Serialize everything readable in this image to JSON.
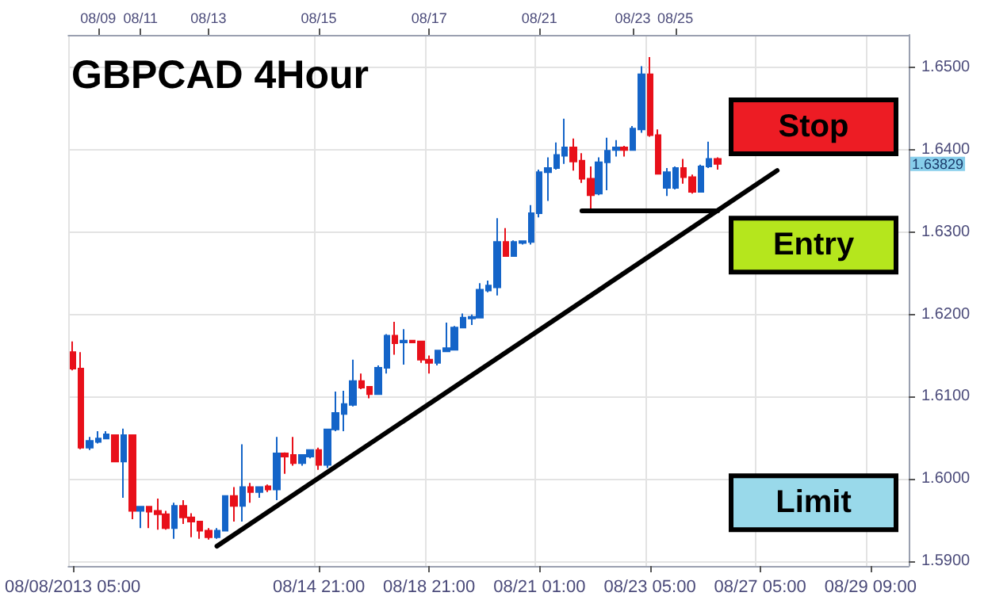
{
  "chart_data": {
    "type": "candlestick",
    "title": "GBPCAD 4Hour",
    "categories": [
      "08/08/2013 05:00",
      null,
      null,
      null,
      null,
      null,
      null,
      null,
      null,
      null,
      null,
      null,
      null,
      null,
      null,
      null,
      null,
      null,
      null,
      null,
      null,
      null,
      null,
      null,
      null,
      null,
      null,
      null,
      null,
      "08/14 21:00",
      null,
      null,
      null,
      null,
      null,
      null,
      null,
      null,
      null,
      null,
      null,
      null,
      "08/18 21:00",
      null,
      null,
      null,
      null,
      null,
      null,
      null,
      null,
      null,
      null,
      null,
      null,
      "08/21 01:00",
      null,
      null,
      null,
      null,
      null,
      null,
      null,
      null,
      null,
      null,
      null,
      null,
      "08/23 05:00",
      null,
      null,
      null,
      null,
      null,
      null,
      null,
      null,
      null,
      null,
      null,
      null,
      "08/27 05:00",
      null,
      null,
      null,
      null,
      null,
      null,
      null,
      null,
      null,
      null,
      null,
      null,
      "08/29 09:00",
      null,
      null,
      null,
      null
    ],
    "ohlc": [
      [
        1.6154,
        1.6167,
        1.6132,
        1.6134
      ],
      [
        1.6134,
        1.6154,
        1.6036,
        1.6038
      ],
      [
        1.6038,
        1.6051,
        1.6035,
        1.6046
      ],
      [
        1.6045,
        1.6058,
        1.6043,
        1.6049
      ],
      [
        1.6049,
        1.6058,
        1.6048,
        1.6054
      ],
      [
        1.6053,
        1.6054,
        1.6021,
        1.6021
      ],
      [
        1.6021,
        1.6061,
        1.5977,
        1.6053
      ],
      [
        1.6053,
        1.6053,
        1.5951,
        1.5961
      ],
      [
        1.5961,
        1.5967,
        1.594,
        1.5966
      ],
      [
        1.5966,
        1.5966,
        1.594,
        1.596
      ],
      [
        1.5961,
        1.5976,
        1.5938,
        1.5957
      ],
      [
        1.5957,
        1.5961,
        1.5938,
        1.594
      ],
      [
        1.594,
        1.5971,
        1.5927,
        1.5967
      ],
      [
        1.5967,
        1.5974,
        1.5945,
        1.5953
      ],
      [
        1.5953,
        1.5958,
        1.5929,
        1.5948
      ],
      [
        1.5948,
        1.5948,
        1.5927,
        1.5937
      ],
      [
        1.5937,
        1.594,
        1.5926,
        1.5929
      ],
      [
        1.5929,
        1.594,
        1.5927,
        1.5937
      ],
      [
        1.5937,
        1.598,
        1.5937,
        1.5979
      ],
      [
        1.5979,
        1.599,
        1.5948,
        1.5967
      ],
      [
        1.5967,
        1.6042,
        1.5948,
        1.599
      ],
      [
        1.599,
        1.5995,
        1.5971,
        1.5984
      ],
      [
        1.5984,
        1.5991,
        1.5977,
        1.599
      ],
      [
        1.5991,
        1.5993,
        1.5984,
        1.5987
      ],
      [
        1.5987,
        1.6051,
        1.5974,
        1.6031
      ],
      [
        1.6031,
        1.6032,
        1.6006,
        1.6027
      ],
      [
        1.6029,
        1.6051,
        1.6016,
        1.6019
      ],
      [
        1.6019,
        1.603,
        1.6016,
        1.6029
      ],
      [
        1.6027,
        1.6036,
        1.6025,
        1.6035
      ],
      [
        1.6035,
        1.6038,
        1.6011,
        1.6017
      ],
      [
        1.6017,
        1.606,
        1.6013,
        1.606
      ],
      [
        1.606,
        1.6106,
        1.6058,
        1.608
      ],
      [
        1.6079,
        1.6107,
        1.6058,
        1.6091
      ],
      [
        1.609,
        1.6145,
        1.6088,
        1.6119
      ],
      [
        1.6119,
        1.6128,
        1.6109,
        1.6111
      ],
      [
        1.6112,
        1.6112,
        1.6098,
        1.6103
      ],
      [
        1.6103,
        1.6138,
        1.6103,
        1.6135
      ],
      [
        1.6135,
        1.6176,
        1.6128,
        1.6174
      ],
      [
        1.6174,
        1.6191,
        1.6151,
        1.6165
      ],
      [
        1.6166,
        1.6182,
        1.6139,
        1.6168
      ],
      [
        1.6168,
        1.6168,
        1.6166,
        1.6166
      ],
      [
        1.6167,
        1.6167,
        1.6141,
        1.6145
      ],
      [
        1.6145,
        1.615,
        1.6128,
        1.6141
      ],
      [
        1.6141,
        1.6157,
        1.6138,
        1.6156
      ],
      [
        1.6155,
        1.619,
        1.6154,
        1.6159
      ],
      [
        1.6157,
        1.6186,
        1.6156,
        1.6184
      ],
      [
        1.6184,
        1.6201,
        1.6183,
        1.6196
      ],
      [
        1.6195,
        1.62,
        1.6187,
        1.6197
      ],
      [
        1.6196,
        1.6238,
        1.6195,
        1.623
      ],
      [
        1.6229,
        1.6241,
        1.6227,
        1.6235
      ],
      [
        1.6233,
        1.6317,
        1.6223,
        1.6288
      ],
      [
        1.6288,
        1.6305,
        1.627,
        1.6271
      ],
      [
        1.6271,
        1.629,
        1.627,
        1.6288
      ],
      [
        1.6287,
        1.629,
        1.6285,
        1.6289
      ],
      [
        1.6288,
        1.6333,
        1.6285,
        1.6323
      ],
      [
        1.6323,
        1.6376,
        1.6318,
        1.6373
      ],
      [
        1.6373,
        1.6391,
        1.6338,
        1.6378
      ],
      [
        1.6378,
        1.6409,
        1.6376,
        1.6394
      ],
      [
        1.6393,
        1.6438,
        1.6383,
        1.6403
      ],
      [
        1.6403,
        1.6414,
        1.6375,
        1.6386
      ],
      [
        1.6387,
        1.6396,
        1.636,
        1.6365
      ],
      [
        1.6365,
        1.638,
        1.6328,
        1.6345
      ],
      [
        1.6347,
        1.6391,
        1.6345,
        1.6385
      ],
      [
        1.6385,
        1.6415,
        1.6351,
        1.6399
      ],
      [
        1.64,
        1.6412,
        1.6392,
        1.6403
      ],
      [
        1.6403,
        1.6405,
        1.6392,
        1.64
      ],
      [
        1.64,
        1.6429,
        1.6399,
        1.6426
      ],
      [
        1.6425,
        1.6502,
        1.6421,
        1.6492
      ],
      [
        1.6492,
        1.6513,
        1.6416,
        1.6418
      ],
      [
        1.6418,
        1.6425,
        1.637,
        1.6371
      ],
      [
        1.6354,
        1.6378,
        1.6344,
        1.6373
      ],
      [
        1.6354,
        1.638,
        1.6352,
        1.6378
      ],
      [
        1.6378,
        1.6389,
        1.6359,
        1.6367
      ],
      [
        1.6367,
        1.637,
        1.6347,
        1.6349
      ],
      [
        1.6349,
        1.6382,
        1.6349,
        1.638
      ],
      [
        1.638,
        1.641,
        1.6378,
        1.6389
      ],
      [
        1.6389,
        1.6391,
        1.6376,
        1.6383
      ],
      null,
      null,
      null,
      null,
      null,
      null,
      null,
      null,
      null,
      null,
      null,
      null,
      null,
      null,
      null,
      null,
      null,
      null,
      null,
      null,
      null,
      null
    ],
    "colors": [
      "#e8101a",
      "#e8101a",
      "#1464c8",
      "#1464c8",
      "#1464c8",
      "#e8101a",
      "#1464c8",
      "#e8101a",
      "#1464c8",
      "#e8101a",
      "#e8101a",
      "#e8101a",
      "#1464c8",
      "#e8101a",
      "#e8101a",
      "#e8101a",
      "#e8101a",
      "#1464c8",
      "#1464c8",
      "#e8101a",
      "#1464c8",
      "#e8101a",
      "#1464c8",
      "#e8101a",
      "#1464c8",
      "#e8101a",
      "#e8101a",
      "#1464c8",
      "#1464c8",
      "#e8101a",
      "#1464c8",
      "#1464c8",
      "#1464c8",
      "#1464c8",
      "#e8101a",
      "#e8101a",
      "#1464c8",
      "#1464c8",
      "#e8101a",
      "#1464c8",
      "#e8101a",
      "#e8101a",
      "#e8101a",
      "#1464c8",
      "#1464c8",
      "#1464c8",
      "#1464c8",
      "#1464c8",
      "#1464c8",
      "#1464c8",
      "#1464c8",
      "#e8101a",
      "#1464c8",
      "#1464c8",
      "#1464c8",
      "#1464c8",
      "#1464c8",
      "#1464c8",
      "#1464c8",
      "#e8101a",
      "#e8101a",
      "#e8101a",
      "#1464c8",
      "#1464c8",
      "#1464c8",
      "#e8101a",
      "#1464c8",
      "#1464c8",
      "#e8101a",
      "#e8101a",
      "#1464c8",
      "#1464c8",
      "#e8101a",
      "#e8101a",
      "#1464c8",
      "#1464c8",
      "#e8101a",
      null,
      null,
      null,
      null,
      null,
      null,
      null,
      null,
      null,
      null,
      null,
      null,
      null,
      null,
      null,
      null,
      null,
      null,
      null,
      null,
      null,
      null
    ],
    "series": [
      {
        "type": "line",
        "color": "#000000",
        "values": [
          null,
          null,
          null,
          null,
          null,
          null,
          null,
          null,
          null,
          null,
          null,
          null,
          null,
          null,
          null,
          null,
          null,
          1.5918,
          null,
          null,
          null,
          null,
          null,
          null,
          null,
          null,
          null,
          null,
          null,
          null,
          null,
          null,
          null,
          null,
          null,
          null,
          null,
          null,
          null,
          null,
          null,
          null,
          null,
          null,
          null,
          null,
          null,
          null,
          null,
          null,
          null,
          null,
          null,
          null,
          null,
          null,
          null,
          null,
          null,
          null,
          null,
          null,
          null,
          null,
          null,
          null,
          null,
          null,
          null,
          null,
          null,
          null,
          null,
          null,
          null,
          null,
          null,
          null,
          null,
          null,
          null,
          null,
          null,
          1.6375,
          null,
          null,
          null,
          null,
          null,
          null,
          null,
          null,
          null,
          null,
          null,
          null,
          null,
          null,
          null
        ]
      },
      {
        "type": "line",
        "color": "#000000",
        "values": [
          null,
          null,
          null,
          null,
          null,
          null,
          null,
          null,
          null,
          null,
          null,
          null,
          null,
          null,
          null,
          null,
          null,
          null,
          null,
          null,
          null,
          null,
          null,
          null,
          null,
          null,
          null,
          null,
          null,
          null,
          null,
          null,
          null,
          null,
          null,
          null,
          null,
          null,
          null,
          null,
          null,
          null,
          null,
          null,
          null,
          null,
          null,
          null,
          null,
          null,
          null,
          null,
          null,
          null,
          null,
          null,
          null,
          null,
          null,
          null,
          1.6326,
          null,
          null,
          null,
          null,
          null,
          null,
          null,
          null,
          null,
          null,
          null,
          null,
          null,
          null,
          null,
          1.6326,
          null,
          null,
          null,
          null,
          null,
          null,
          null,
          null,
          null,
          null,
          null,
          null,
          null,
          null,
          null,
          null,
          null,
          null,
          null,
          null,
          null,
          null
        ]
      }
    ],
    "annotations": [
      "Stop",
      "Entry",
      "Limit",
      "1.63829",
      "08/09",
      "08/11",
      "08/13",
      "08/15",
      "08/17",
      "08/21",
      "08/23",
      "08/25"
    ],
    "ylim": [
      1.5894,
      1.654
    ],
    "yticks": [
      {
        "value": 1.59,
        "label": "1.5900"
      },
      {
        "value": 1.6,
        "label": "1.6000"
      },
      {
        "value": 1.61,
        "label": "1.6100"
      },
      {
        "value": 1.62,
        "label": "1.6200"
      },
      {
        "value": 1.63,
        "label": "1.6300"
      },
      {
        "value": 1.64,
        "label": "1.6400"
      },
      {
        "value": 1.65,
        "label": "1.6500"
      }
    ],
    "grid": true
  }
}
